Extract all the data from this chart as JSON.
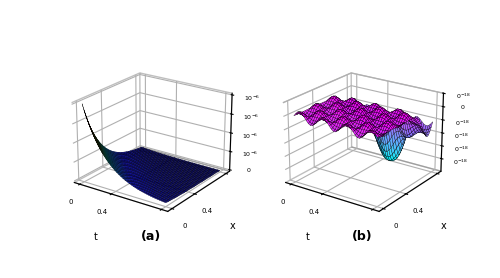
{
  "title_a": "(a)",
  "title_b": "(b)",
  "xlabel": "t",
  "ylabel": "x",
  "background_color": "#ffffff",
  "figsize": [
    5.0,
    2.78
  ],
  "dpi": 100,
  "elev_a": 22,
  "azim_a": -55,
  "elev_b": 22,
  "azim_b": -55,
  "surface_alpha": 0.95,
  "grid_n": 40
}
